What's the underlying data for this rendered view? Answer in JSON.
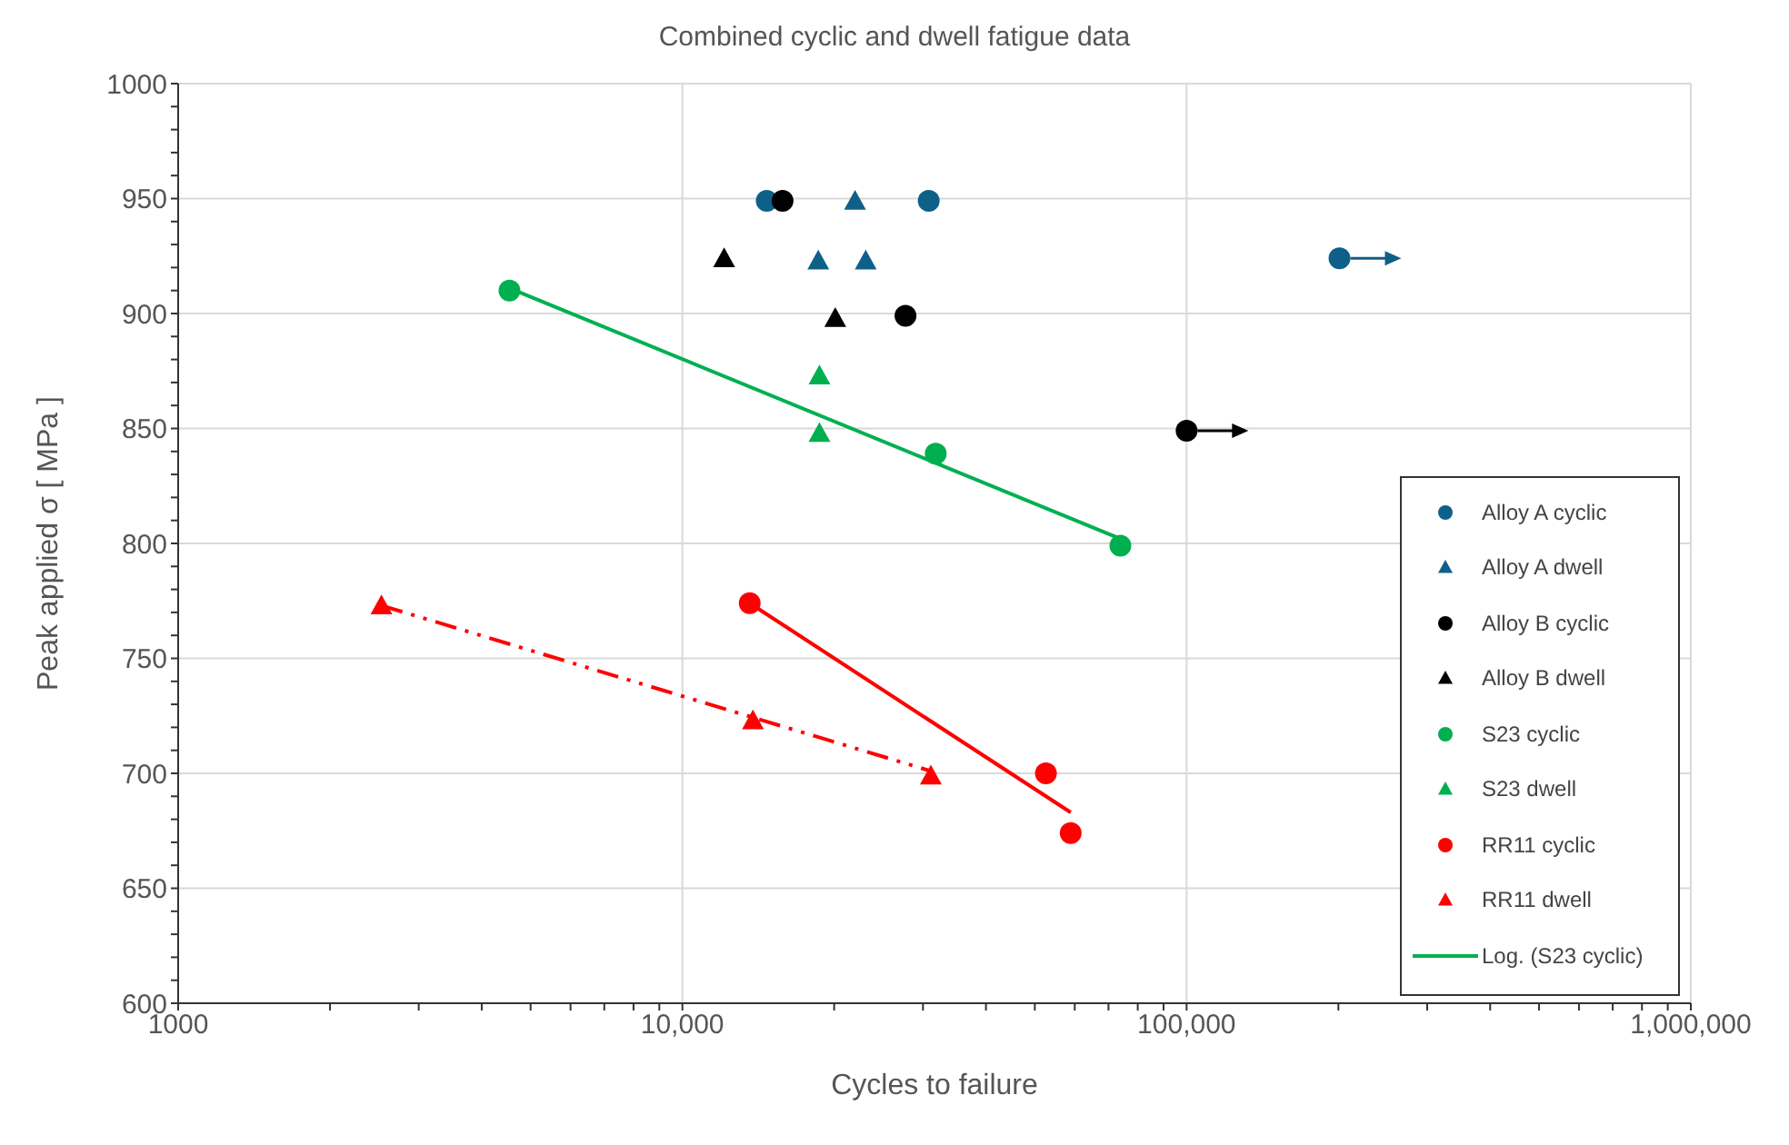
{
  "chart_data": {
    "type": "scatter",
    "title": "Combined cyclic and dwell fatigue data",
    "xlabel": "Cycles to failure",
    "ylabel": "Peak applied σ  [ MPa ]",
    "log": "x",
    "grid": true,
    "legend": "bottom right",
    "xlim": [
      1000,
      1000000
    ],
    "xticks": [
      {
        "value": 1000,
        "label": "1000"
      },
      {
        "value": 2000,
        "label": null
      },
      {
        "value": 3000,
        "label": null
      },
      {
        "value": 4000,
        "label": null
      },
      {
        "value": 5000,
        "label": null
      },
      {
        "value": 6000,
        "label": null
      },
      {
        "value": 7000,
        "label": null
      },
      {
        "value": 8000,
        "label": null
      },
      {
        "value": 9000,
        "label": null
      },
      {
        "value": 10000,
        "label": "10,000"
      },
      {
        "value": 20000,
        "label": null
      },
      {
        "value": 30000,
        "label": null
      },
      {
        "value": 40000,
        "label": null
      },
      {
        "value": 50000,
        "label": null
      },
      {
        "value": 60000,
        "label": null
      },
      {
        "value": 70000,
        "label": null
      },
      {
        "value": 80000,
        "label": null
      },
      {
        "value": 90000,
        "label": null
      },
      {
        "value": 100000,
        "label": "100,000"
      },
      {
        "value": 200000,
        "label": null
      },
      {
        "value": 300000,
        "label": null
      },
      {
        "value": 400000,
        "label": null
      },
      {
        "value": 500000,
        "label": null
      },
      {
        "value": 600000,
        "label": null
      },
      {
        "value": 700000,
        "label": null
      },
      {
        "value": 800000,
        "label": null
      },
      {
        "value": 900000,
        "label": null
      },
      {
        "value": 1000000,
        "label": "1,000,000"
      }
    ],
    "ylim": [
      600,
      1000
    ],
    "yticks": [
      600,
      {
        "value": 610,
        "label": null
      },
      {
        "value": 620,
        "label": null
      },
      {
        "value": 630,
        "label": null
      },
      {
        "value": 640,
        "label": null
      },
      650,
      {
        "value": 660,
        "label": null
      },
      {
        "value": 670,
        "label": null
      },
      {
        "value": 680,
        "label": null
      },
      {
        "value": 690,
        "label": null
      },
      700,
      {
        "value": 710,
        "label": null
      },
      {
        "value": 720,
        "label": null
      },
      {
        "value": 730,
        "label": null
      },
      {
        "value": 740,
        "label": null
      },
      750,
      {
        "value": 760,
        "label": null
      },
      {
        "value": 770,
        "label": null
      },
      {
        "value": 780,
        "label": null
      },
      {
        "value": 790,
        "label": null
      },
      800,
      {
        "value": 810,
        "label": null
      },
      {
        "value": 820,
        "label": null
      },
      {
        "value": 830,
        "label": null
      },
      {
        "value": 840,
        "label": null
      },
      850,
      {
        "value": 860,
        "label": null
      },
      {
        "value": 870,
        "label": null
      },
      {
        "value": 880,
        "label": null
      },
      {
        "value": 890,
        "label": null
      },
      900,
      {
        "value": 910,
        "label": null
      },
      {
        "value": 920,
        "label": null
      },
      {
        "value": 930,
        "label": null
      },
      {
        "value": 940,
        "label": null
      },
      950,
      {
        "value": 960,
        "label": null
      },
      {
        "value": 970,
        "label": null
      },
      {
        "value": 980,
        "label": null
      },
      {
        "value": 990,
        "label": null
      },
      1000
    ],
    "series": [
      {
        "name": "Alloy A cyclic",
        "marker": "circle",
        "color": "#0f6089",
        "x": [
          14700,
          30800,
          201000
        ],
        "values": [
          949,
          949,
          924
        ]
      },
      {
        "name": "Alloy A dwell",
        "marker": "triangle",
        "color": "#0f6089",
        "x": [
          22000,
          18600,
          23100
        ],
        "values": [
          949,
          923,
          923
        ]
      },
      {
        "name": "Alloy B cyclic",
        "marker": "circle",
        "color": "#000000",
        "x": [
          15800,
          27700,
          100000
        ],
        "values": [
          949,
          899,
          849
        ]
      },
      {
        "name": "Alloy B dwell",
        "marker": "triangle",
        "color": "#000000",
        "x": [
          12100,
          20100
        ],
        "values": [
          924,
          898
        ]
      },
      {
        "name": "S23 cyclic",
        "marker": "circle",
        "color": "#00b050",
        "x": [
          4540,
          31800,
          73900
        ],
        "values": [
          910,
          839,
          799
        ]
      },
      {
        "name": "S23 dwell",
        "marker": "triangle",
        "color": "#00b050",
        "x": [
          18700,
          18700
        ],
        "values": [
          873,
          848
        ]
      },
      {
        "name": "RR11 cyclic",
        "marker": "circle",
        "color": "#ff0000",
        "x": [
          13600,
          52600,
          58900
        ],
        "values": [
          774,
          700,
          674
        ]
      },
      {
        "name": "RR11 dwell",
        "marker": "triangle",
        "color": "#ff0000",
        "x": [
          2530,
          13800,
          31100
        ],
        "values": [
          773,
          723,
          699
        ]
      },
      {
        "name": "Log. (S23 cyclic)",
        "type": "line",
        "marker": "none",
        "line_style": "solid",
        "color": "#00b050",
        "x": [
          4540,
          73900
        ],
        "values": [
          911,
          802
        ]
      },
      {
        "type": "line",
        "marker": "none",
        "line_style": "solid",
        "color": "#ff0000",
        "x": [
          13600,
          58900
        ],
        "values": [
          774,
          683
        ]
      },
      {
        "type": "line",
        "marker": "none",
        "line_style": "dashed",
        "color": "#ff0000",
        "x": [
          2530,
          31100
        ],
        "values": [
          773,
          701
        ]
      }
    ]
  }
}
